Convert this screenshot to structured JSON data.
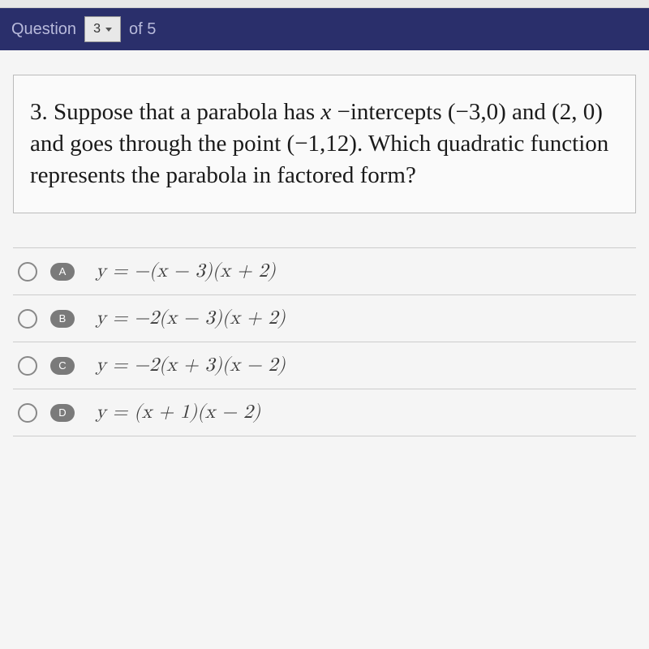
{
  "header": {
    "question_label": "Question",
    "current": "3",
    "of_label": "of 5"
  },
  "question": {
    "number": "3.",
    "text_parts": {
      "p1": "Suppose that a parabola has",
      "p2": " −intercepts (−3,0) and (2, 0) and goes through the point (−1,12). Which quadratic function represents the parabola in factored form?"
    },
    "x_symbol": "x"
  },
  "options": [
    {
      "letter": "A",
      "formula": "y = −(x − 3)(x + 2)"
    },
    {
      "letter": "B",
      "formula": "y = −2(x − 3)(x + 2)"
    },
    {
      "letter": "C",
      "formula": "y = −2(x + 3)(x − 2)"
    },
    {
      "letter": "D",
      "formula": "y = (x + 1)(x − 2)"
    }
  ],
  "colors": {
    "header_bg": "#2a2f6b",
    "header_text": "#b8badb",
    "badge_bg": "#7a7a7a",
    "border": "#bbbbbb"
  }
}
